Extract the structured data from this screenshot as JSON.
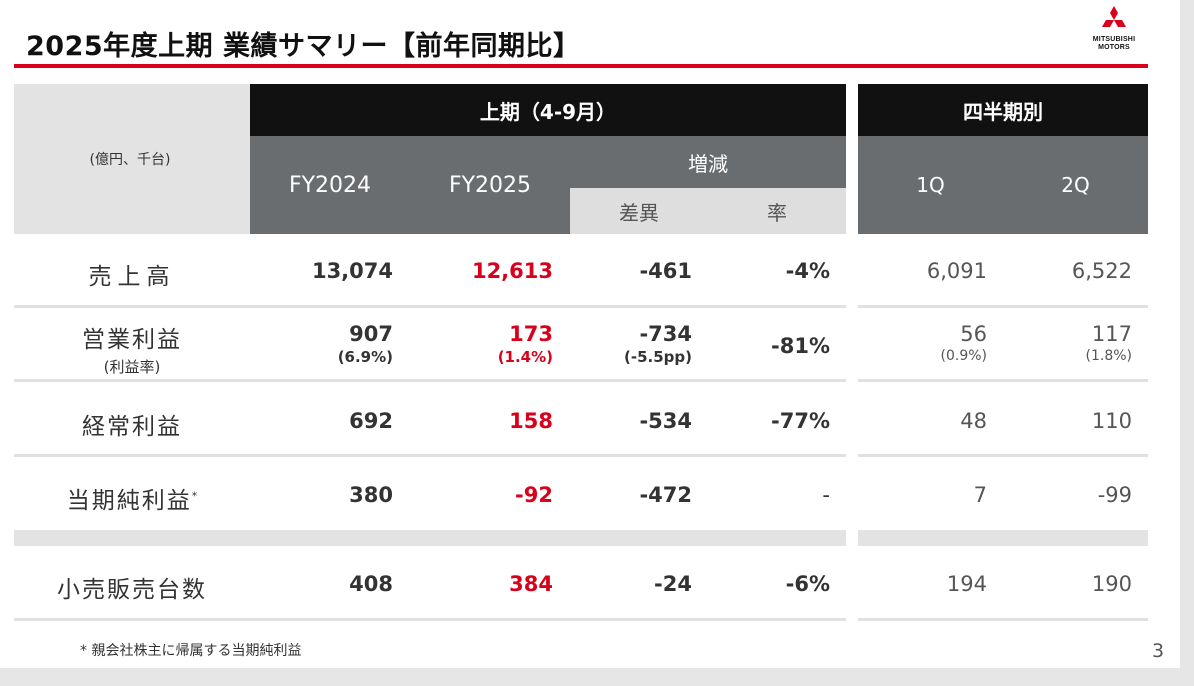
{
  "title": "2025年度上期 業績サマリー【前年同期比】",
  "logo": {
    "line1": "MITSUBISHI",
    "line2": "MOTORS"
  },
  "header": {
    "unit": "(億円、千台)",
    "half_year": "上期（4-9月）",
    "quarterly": "四半期別",
    "fy2024": "FY2024",
    "fy2025": "FY2025",
    "change": "増減",
    "diff": "差異",
    "rate": "率",
    "q1": "1Q",
    "q2": "2Q"
  },
  "rows": [
    {
      "label": "売上高",
      "fy2024": "13,074",
      "fy2025": "12,613",
      "diff": "-461",
      "rate": "-4%",
      "q1": "6,091",
      "q2": "6,522"
    },
    {
      "label": "営業利益",
      "sublabel": "(利益率)",
      "fy2024": "907",
      "fy2024_sub": "(6.9%)",
      "fy2025": "173",
      "fy2025_sub": "(1.4%)",
      "diff": "-734",
      "diff_sub": "(-5.5pp)",
      "rate": "-81%",
      "q1": "56",
      "q1_sub": "(0.9%)",
      "q2": "117",
      "q2_sub": "(1.8%)"
    },
    {
      "label": "経常利益",
      "fy2024": "692",
      "fy2025": "158",
      "diff": "-534",
      "rate": "-77%",
      "q1": "48",
      "q2": "110"
    },
    {
      "label": "当期純利益",
      "label_mark": "*",
      "fy2024": "380",
      "fy2025": "-92",
      "diff": "-472",
      "rate": "-",
      "q1": "7",
      "q2": "-99"
    },
    {
      "label": "小売販売台数",
      "fy2024": "408",
      "fy2025": "384",
      "diff": "-24",
      "rate": "-6%",
      "q1": "194",
      "q2": "190"
    }
  ],
  "footnote": "* 親会社株主に帰属する当期純利益",
  "page_number": "3",
  "colors": {
    "accent_red": "#d9001b",
    "header_black": "#111111",
    "header_gray": "#6a6d70"
  }
}
